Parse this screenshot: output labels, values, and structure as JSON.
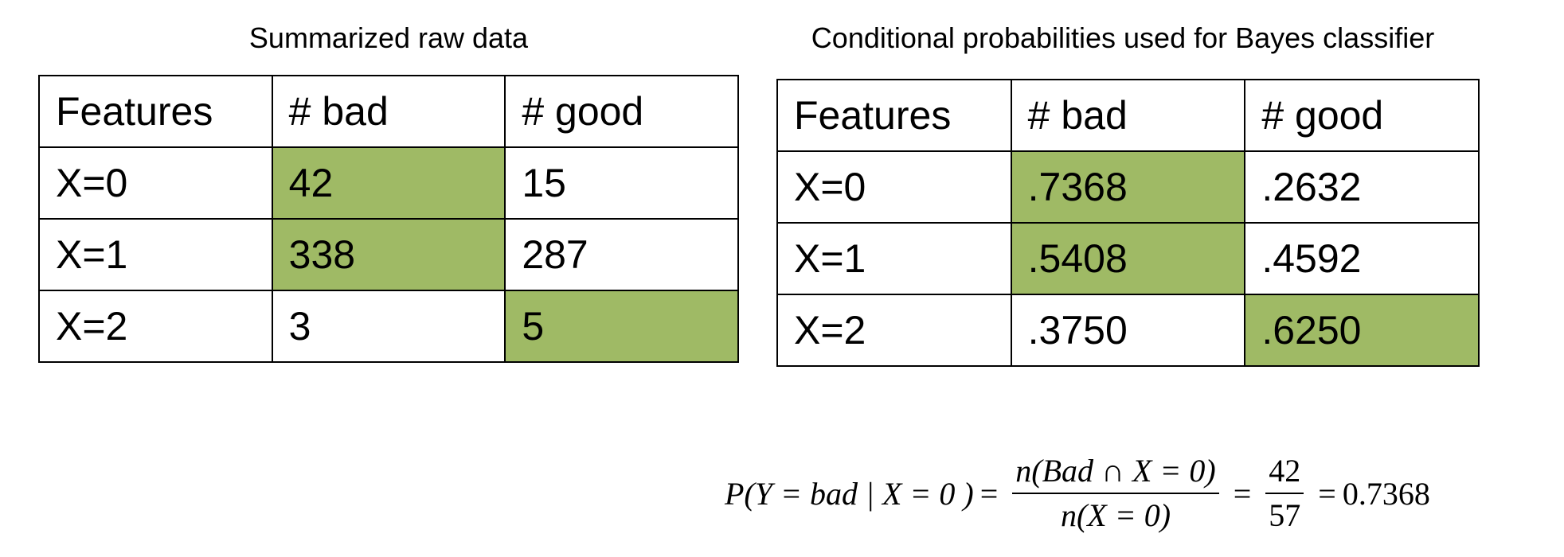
{
  "raw_table": {
    "caption": "Summarized raw data",
    "headers": [
      "Features",
      "# bad",
      "# good"
    ],
    "rows": [
      {
        "feature": "X=0",
        "bad": "42",
        "good": "15",
        "highlight": "bad"
      },
      {
        "feature": "X=1",
        "bad": "338",
        "good": "287",
        "highlight": "bad"
      },
      {
        "feature": "X=2",
        "bad": "3",
        "good": "5",
        "highlight": "good"
      }
    ]
  },
  "prob_table": {
    "caption": "Conditional probabilities used for Bayes classifier",
    "headers": [
      "Features",
      "# bad",
      "# good"
    ],
    "rows": [
      {
        "feature": "X=0",
        "bad": ".7368",
        "good": ".2632",
        "highlight": "bad"
      },
      {
        "feature": "X=1",
        "bad": ".5408",
        "good": ".4592",
        "highlight": "bad"
      },
      {
        "feature": "X=2",
        "bad": ".3750",
        "good": ".6250",
        "highlight": "good"
      }
    ]
  },
  "formula": {
    "lhs": "P(Y = bad | X = 0 )",
    "eq": "=",
    "frac1_num": "n(Bad  ∩ X = 0)",
    "frac1_den": "n(X = 0)",
    "frac2_num": "42",
    "frac2_den": "57",
    "result": "0.7368"
  },
  "colors": {
    "highlight": "#9fba65",
    "border": "#000000"
  }
}
